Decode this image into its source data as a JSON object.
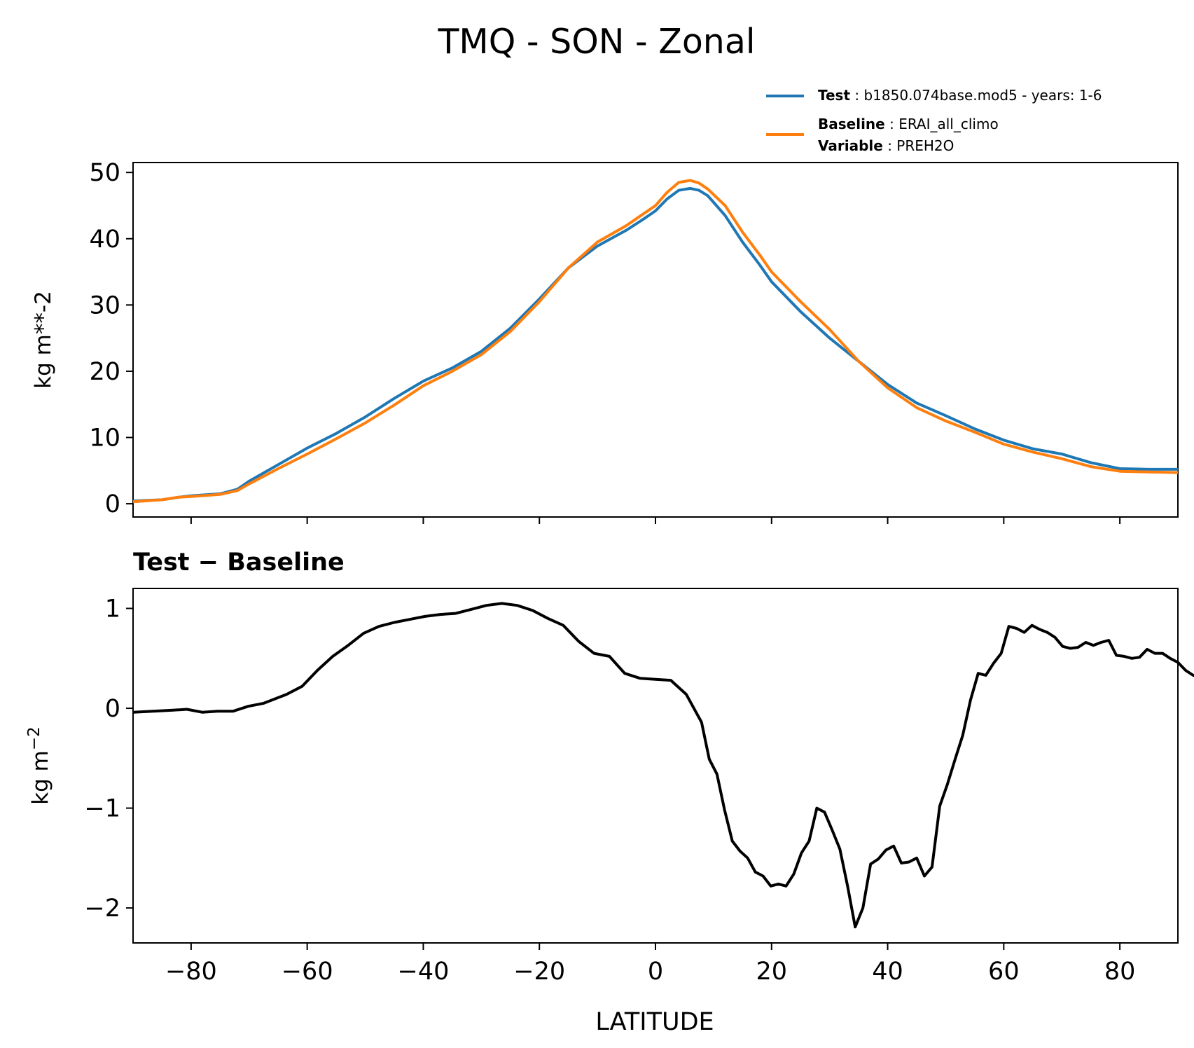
{
  "title": "TMQ - SON - Zonal",
  "legend": {
    "test": {
      "label": "Test",
      "value": "b1850.074base.mod5 - years: 1-6"
    },
    "baseline": {
      "label": "Baseline",
      "value": "ERAI_all_climo"
    },
    "variable": {
      "label": "Variable",
      "value": "PREH2O"
    }
  },
  "diff_title": "Test − Baseline",
  "xlabel": "LATITUDE",
  "colors": {
    "test": "#1f77b4",
    "baseline": "#ff7f0e",
    "difference": "#000000"
  },
  "chart_data": [
    {
      "type": "line",
      "ylabel": "kg m**-2",
      "xlim": [
        -90,
        90
      ],
      "ylim": [
        -2,
        51.5
      ],
      "xticks": [
        -80,
        -60,
        -40,
        -20,
        0,
        20,
        40,
        60,
        80
      ],
      "yticks": [
        0,
        10,
        20,
        30,
        40,
        50
      ],
      "ytick_labels": [
        "0",
        "10",
        "20",
        "30",
        "40",
        "50"
      ],
      "grid": false,
      "legend_position": "top-right",
      "series": [
        {
          "name": "Test",
          "color": "#1f77b4",
          "x": [
            -90,
            -85,
            -80,
            -75,
            -70,
            -65,
            -60,
            -55,
            -50,
            -45,
            -40,
            -35,
            -30,
            -25,
            -20,
            -15,
            -10,
            -5,
            0,
            2,
            4,
            6,
            7.5,
            9,
            12,
            15,
            20,
            25,
            30,
            35,
            40,
            45,
            50,
            55,
            60,
            65,
            70,
            75,
            80,
            85,
            90
          ],
          "y": [
            0.4,
            0.6,
            1.1,
            1.7,
            3.4,
            6.3,
            8.4,
            10.6,
            13.1,
            15.9,
            18.5,
            20.5,
            23.0,
            26.5,
            30.9,
            35.6,
            38.9,
            41.3,
            44.5,
            46.5,
            47.3,
            47.1,
            46.2,
            44.0,
            39.5,
            34.5,
            29.0,
            25.0,
            21.0,
            18.0,
            15.2,
            13.3,
            11.3,
            9.0,
            7.2,
            5.8,
            5.2,
            5.1,
            5.2,
            5.2,
            5.2
          ],
          "note": "custom-path"
        }
      ]
    }
  ]
}
